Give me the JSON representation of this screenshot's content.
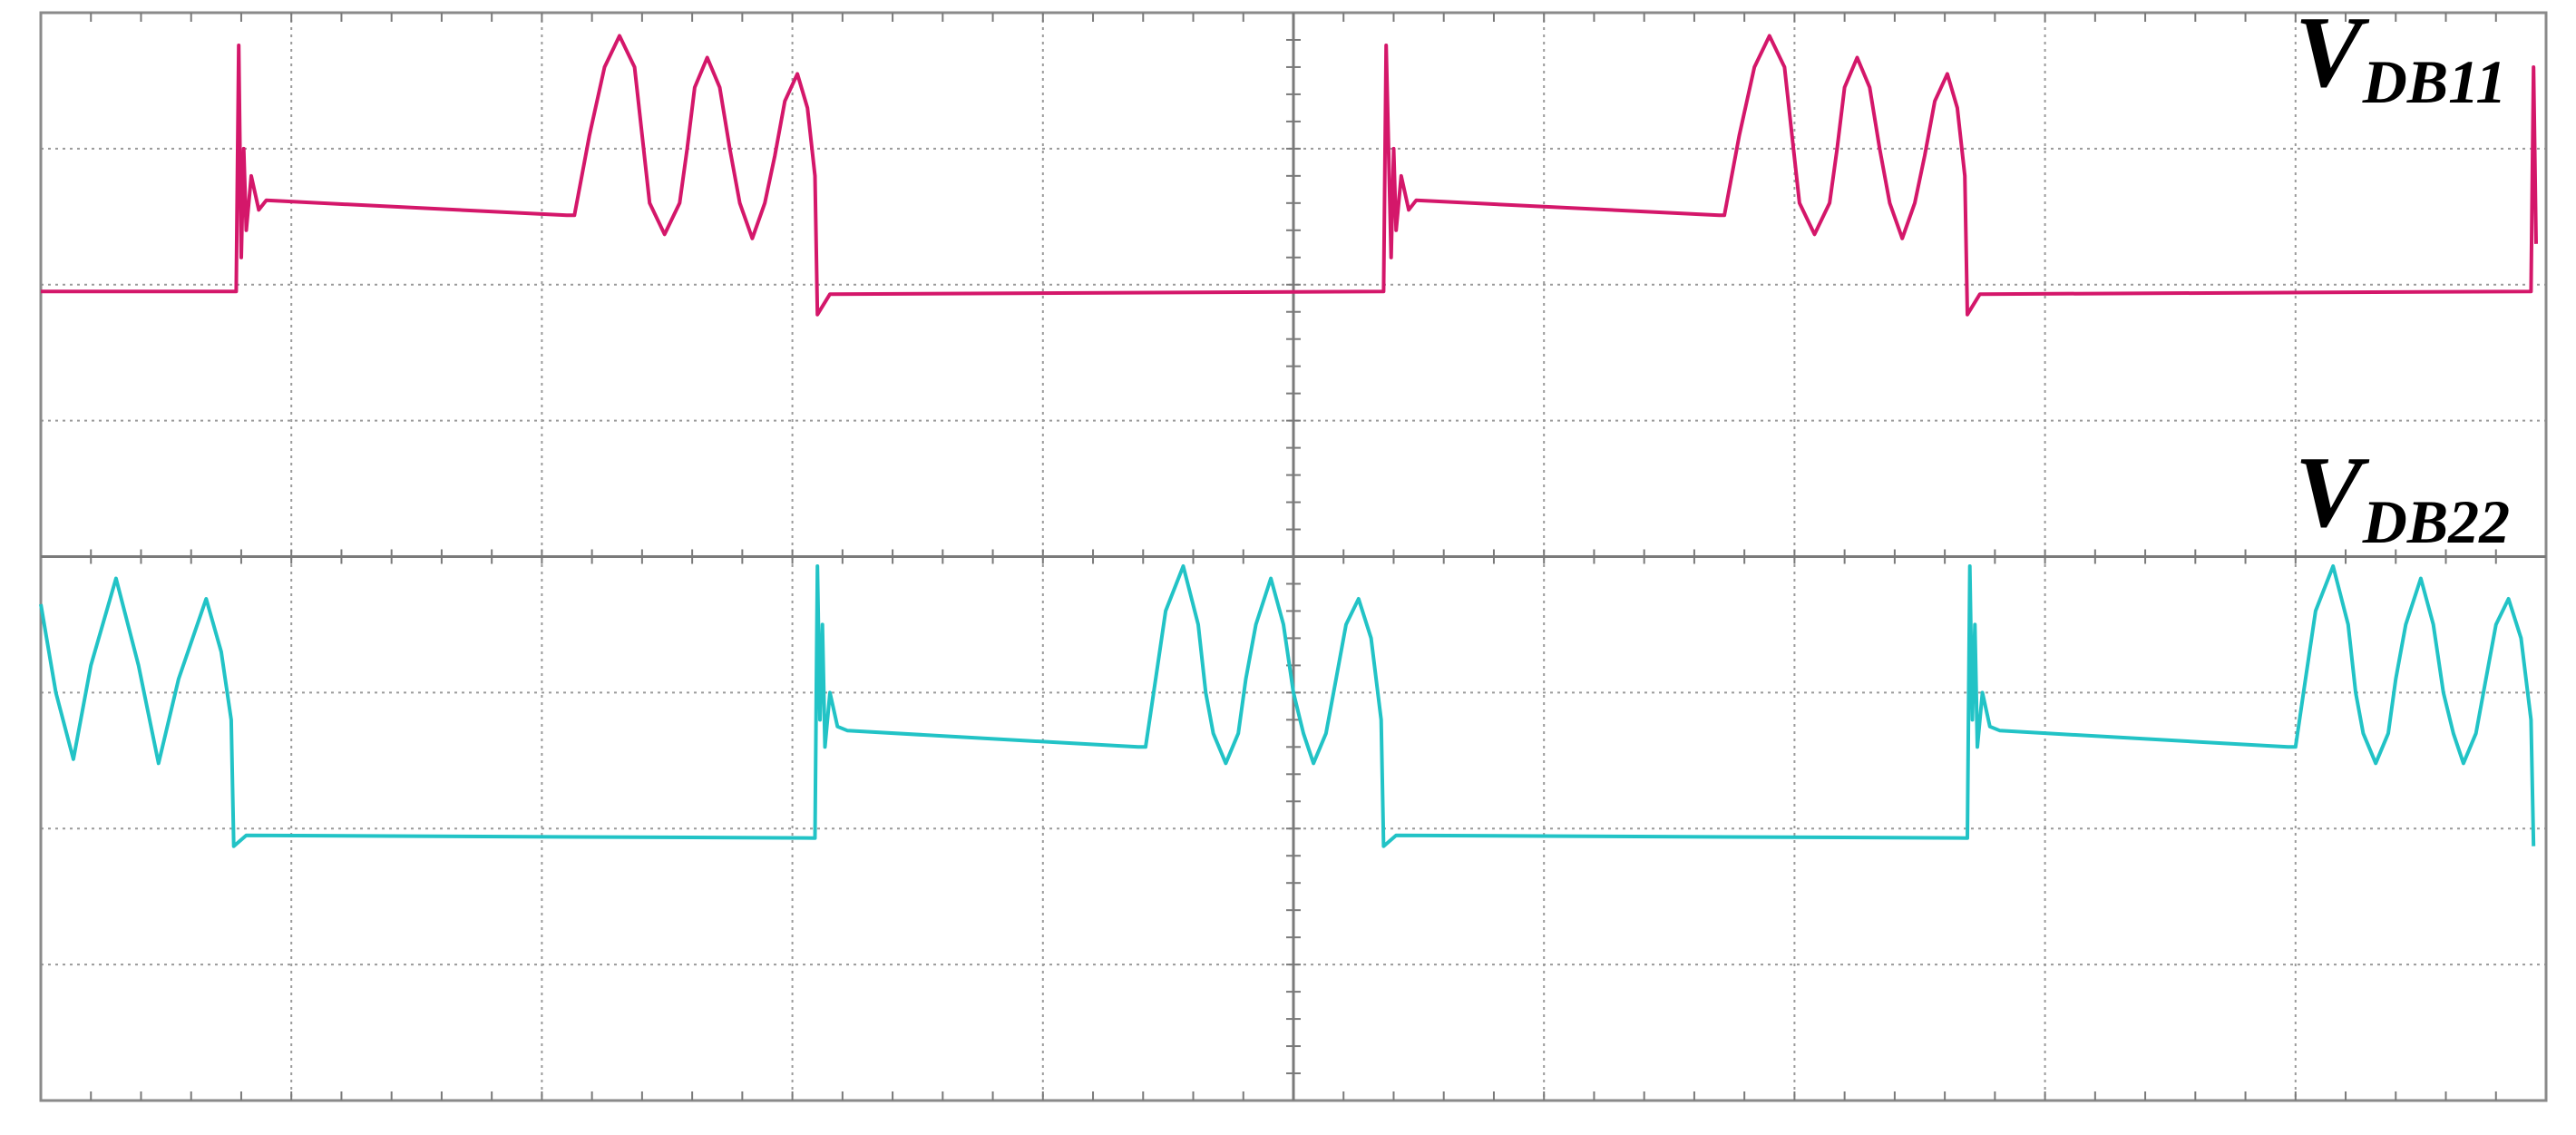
{
  "chart_data": {
    "type": "line",
    "xlim": [
      0,
      10
    ],
    "ylim": [
      0,
      8
    ],
    "xticks": [
      0,
      1,
      2,
      3,
      4,
      5,
      6,
      7,
      8,
      9,
      10
    ],
    "yticks": [
      0,
      1,
      2,
      3,
      4,
      5,
      6,
      7,
      8
    ],
    "grid": true,
    "annotations": [
      {
        "text": "V",
        "sub": "DB11"
      },
      {
        "text": "V",
        "sub": "DB22"
      }
    ],
    "series": [
      {
        "color": "#d4176a",
        "x": [
          0,
          0.78,
          0.79,
          0.8,
          0.81,
          0.82,
          0.84,
          0.87,
          0.9,
          2.1,
          2.13,
          2.19,
          2.25,
          2.31,
          2.37,
          2.4,
          2.43,
          2.49,
          2.55,
          2.58,
          2.61,
          2.66,
          2.71,
          2.75,
          2.79,
          2.84,
          2.89,
          2.93,
          2.97,
          3.02,
          3.06,
          3.09,
          3.1,
          3.15,
          5.36,
          5.37,
          5.39,
          5.4,
          5.41,
          5.43,
          5.46,
          5.49,
          6.7,
          6.72,
          6.78,
          6.84,
          6.9,
          6.96,
          6.99,
          7.02,
          7.08,
          7.14,
          7.17,
          7.2,
          7.25,
          7.3,
          7.34,
          7.38,
          7.43,
          7.48,
          7.52,
          7.56,
          7.61,
          7.65,
          7.68,
          7.69,
          7.74,
          9.94,
          9.95,
          9.96
        ],
        "values": [
          5.95,
          5.95,
          7.76,
          6.2,
          7.0,
          6.4,
          6.8,
          6.55,
          6.62,
          6.51,
          6.51,
          7.1,
          7.6,
          7.83,
          7.6,
          7.1,
          6.6,
          6.37,
          6.6,
          7.0,
          7.45,
          7.67,
          7.45,
          7.0,
          6.6,
          6.34,
          6.6,
          6.95,
          7.35,
          7.55,
          7.3,
          6.8,
          5.78,
          5.93,
          5.95,
          7.76,
          6.2,
          7.0,
          6.4,
          6.8,
          6.55,
          6.62,
          6.51,
          6.51,
          7.1,
          7.6,
          7.83,
          7.6,
          7.1,
          6.6,
          6.37,
          6.6,
          7.0,
          7.45,
          7.67,
          7.45,
          7.0,
          6.6,
          6.34,
          6.6,
          6.95,
          7.35,
          7.55,
          7.3,
          6.8,
          5.78,
          5.93,
          5.95,
          7.6,
          6.3
        ]
      },
      {
        "color": "#22c3c6",
        "x": [
          0,
          0.06,
          0.13,
          0.2,
          0.3,
          0.39,
          0.47,
          0.55,
          0.66,
          0.72,
          0.76,
          0.77,
          0.82,
          3.09,
          3.1,
          3.11,
          3.12,
          3.13,
          3.15,
          3.18,
          3.22,
          4.38,
          4.41,
          4.45,
          4.49,
          4.56,
          4.62,
          4.65,
          4.68,
          4.73,
          4.78,
          4.81,
          4.85,
          4.91,
          4.96,
          5.0,
          5.04,
          5.08,
          5.13,
          5.17,
          5.21,
          5.26,
          5.31,
          5.35,
          5.36,
          5.41,
          7.69,
          7.7,
          7.71,
          7.72,
          7.73,
          7.75,
          7.78,
          7.82,
          8.97,
          9.0,
          9.04,
          9.08,
          9.15,
          9.21,
          9.24,
          9.27,
          9.32,
          9.37,
          9.4,
          9.44,
          9.5,
          9.55,
          9.59,
          9.63,
          9.67,
          9.72,
          9.76,
          9.8,
          9.85,
          9.9,
          9.94,
          9.95
        ],
        "values": [
          3.65,
          3.0,
          2.51,
          3.2,
          3.84,
          3.2,
          2.48,
          3.1,
          3.69,
          3.3,
          2.8,
          1.87,
          1.95,
          1.93,
          3.93,
          2.8,
          3.5,
          2.6,
          3.0,
          2.75,
          2.72,
          2.6,
          2.6,
          3.1,
          3.6,
          3.93,
          3.5,
          3.0,
          2.7,
          2.48,
          2.7,
          3.1,
          3.5,
          3.84,
          3.5,
          3.0,
          2.7,
          2.48,
          2.7,
          3.1,
          3.5,
          3.69,
          3.4,
          2.8,
          1.87,
          1.95,
          1.93,
          3.93,
          2.8,
          3.5,
          2.6,
          3.0,
          2.75,
          2.72,
          2.6,
          2.6,
          3.1,
          3.6,
          3.93,
          3.5,
          3.0,
          2.7,
          2.48,
          2.7,
          3.1,
          3.5,
          3.84,
          3.5,
          3.0,
          2.7,
          2.48,
          2.7,
          3.1,
          3.5,
          3.69,
          3.4,
          2.8,
          1.87
        ]
      }
    ]
  }
}
